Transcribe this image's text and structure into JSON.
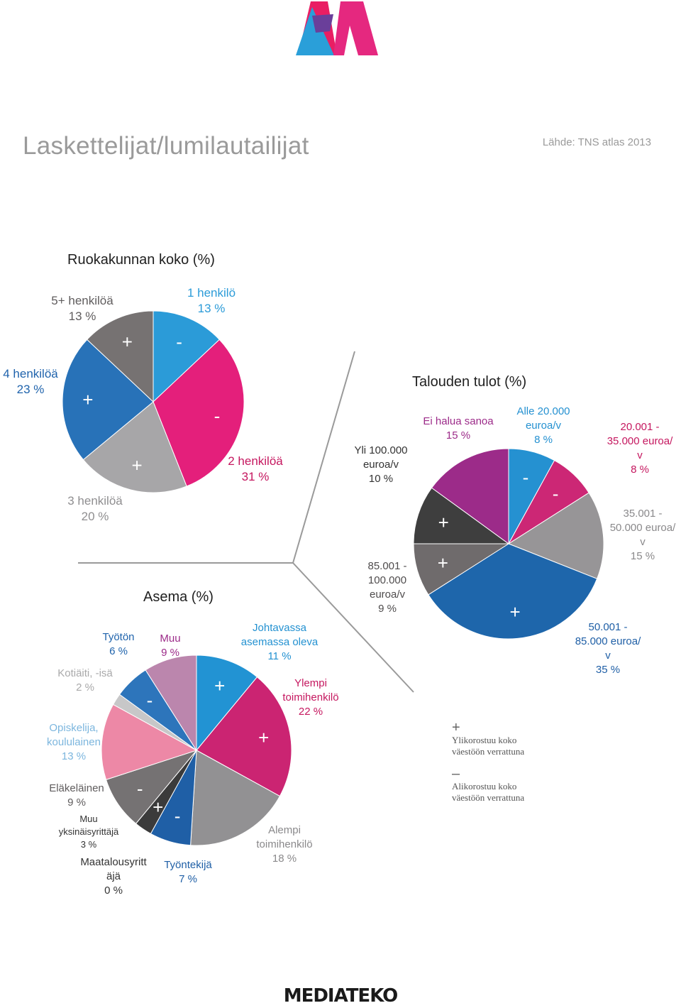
{
  "header": {
    "title": "Laskettelijat/lumilautailijat",
    "source": "Lähde: TNS atlas 2013"
  },
  "footer": {
    "brand": "MEDIATEKO"
  },
  "legend": {
    "plus_symbol": "+",
    "plus_text_1": "Ylikorostuu koko",
    "plus_text_2": "väestöön verrattuna",
    "minus_symbol": "–",
    "minus_text_1": "Alikorostuu koko",
    "minus_text_2": "väestöön verrattuna"
  },
  "chart_data": [
    {
      "type": "pie",
      "title": "Ruokakunnan koko (%)",
      "slices": [
        {
          "label": "1 henkilö",
          "value": 13,
          "pct": "13 %",
          "color": "#2b9bd8",
          "mark": "-"
        },
        {
          "label": "2 henkilöä",
          "value": 31,
          "pct": "31 %",
          "color": "#e41f7b",
          "mark": "-"
        },
        {
          "label": "3 henkilöä",
          "value": 20,
          "pct": "20 %",
          "color": "#a7a6a8",
          "mark": "+"
        },
        {
          "label": "4 henkilöä",
          "value": 23,
          "pct": "23 %",
          "color": "#2872b8",
          "mark": "+"
        },
        {
          "label": "5+ henkilöä",
          "value": 13,
          "pct": "13 %",
          "color": "#767272",
          "mark": "+"
        }
      ]
    },
    {
      "type": "pie",
      "title": "Asema (%)",
      "slices": [
        {
          "label": "Johtavassa asemassa oleva",
          "value": 11,
          "pct": "11 %",
          "color": "#2293d3",
          "mark": "+"
        },
        {
          "label": "Ylempi toimihenkilö",
          "value": 22,
          "pct": "22 %",
          "color": "#cb2472",
          "mark": "+"
        },
        {
          "label": "Alempi toimihenkilö",
          "value": 18,
          "pct": "18 %",
          "color": "#929193",
          "mark": ""
        },
        {
          "label": "Työntekijä",
          "value": 7,
          "pct": "7 %",
          "color": "#1f5fa6",
          "mark": "-"
        },
        {
          "label": "Maatalousyrittäjä",
          "value": 0,
          "pct": "0 %",
          "color": "#3a3a3a",
          "mark": ""
        },
        {
          "label": "Muu yksinäisyrittäjä",
          "value": 3,
          "pct": "3 %",
          "color": "#3b3b3b",
          "mark": "+"
        },
        {
          "label": "Eläkeläinen",
          "value": 9,
          "pct": "9 %",
          "color": "#757273",
          "mark": "-"
        },
        {
          "label": "Opiskelija, koululainen",
          "value": 13,
          "pct": "13 %",
          "color": "#ed88a6",
          "mark": ""
        },
        {
          "label": "Kotiäiti, -isä",
          "value": 2,
          "pct": "2 %",
          "color": "#c7c7c8",
          "mark": ""
        },
        {
          "label": "Työtön",
          "value": 6,
          "pct": "6 %",
          "color": "#2d75bb",
          "mark": "-"
        },
        {
          "label": "Muu",
          "value": 9,
          "pct": "9 %",
          "color": "#bb86ad",
          "mark": ""
        }
      ]
    },
    {
      "type": "pie",
      "title": "Talouden tulot (%)",
      "slices": [
        {
          "label": "Alle 20.000 euroa/v",
          "value": 8,
          "pct": "8 %",
          "color": "#2591d1",
          "mark": "-"
        },
        {
          "label": "20.001 - 35.000 euroa/v",
          "value": 8,
          "pct": "8 %",
          "color": "#cc2775",
          "mark": "-"
        },
        {
          "label": "35.001 - 50.000 euroa/v",
          "value": 15,
          "pct": "15 %",
          "color": "#979597",
          "mark": ""
        },
        {
          "label": "50.001 - 85.000 euroa/v",
          "value": 35,
          "pct": "35 %",
          "color": "#1e66ab",
          "mark": "+"
        },
        {
          "label": "85.001 - 100.000 euroa/v",
          "value": 9,
          "pct": "9 %",
          "color": "#6f6b6c",
          "mark": "+"
        },
        {
          "label": "Yli 100.000 euroa/v",
          "value": 10,
          "pct": "10 %",
          "color": "#3e3e3e",
          "mark": "+"
        },
        {
          "label": "Ei halua sanoa",
          "value": 15,
          "pct": "15 %",
          "color": "#9c2b89",
          "mark": ""
        }
      ]
    }
  ]
}
